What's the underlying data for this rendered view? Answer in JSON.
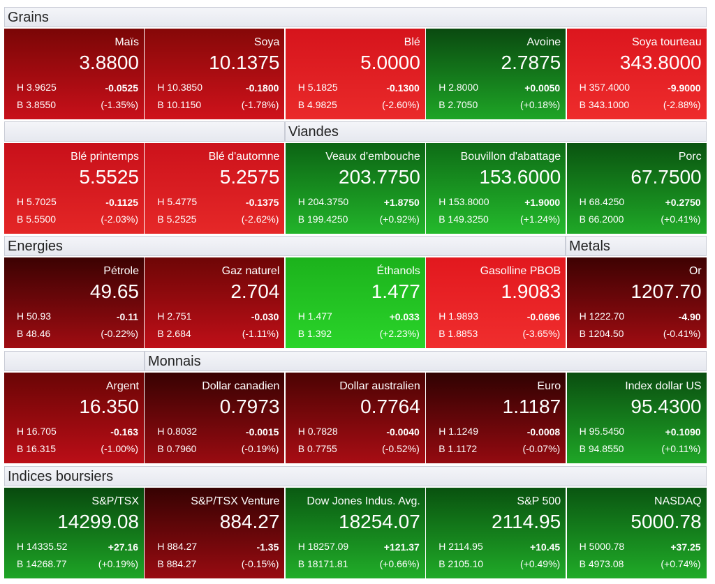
{
  "sections": [
    {
      "headers": [
        "Grains"
      ],
      "tiles": [
        {
          "name": "Maïs",
          "price": "3.8800",
          "high": "H 3.9625",
          "change": "-0.0525",
          "low": "B 3.8550",
          "pct": "(-1.35%)",
          "colors": [
            "#7a0606",
            "#c8101a"
          ]
        },
        {
          "name": "Soya",
          "price": "10.1375",
          "high": "H 10.3850",
          "change": "-0.1800",
          "low": "B 10.1150",
          "pct": "(-1.78%)",
          "colors": [
            "#860808",
            "#cf121b"
          ]
        },
        {
          "name": "Blé",
          "price": "5.0000",
          "high": "H 5.1825",
          "change": "-0.1300",
          "low": "B 4.9825",
          "pct": "(-2.60%)",
          "colors": [
            "#d6141c",
            "#ea2a2a"
          ]
        },
        {
          "name": "Avoine",
          "price": "2.7875",
          "high": "H 2.8000",
          "change": "+0.0050",
          "low": "B 2.7050",
          "pct": "(+0.18%)",
          "colors": [
            "#0a4a10",
            "#1ea526"
          ]
        },
        {
          "name": "Soya tourteau",
          "price": "343.8000",
          "high": "H 357.4000",
          "change": "-9.9000",
          "low": "B 343.1000",
          "pct": "(-2.88%)",
          "colors": [
            "#dc161e",
            "#ee2c2c"
          ]
        }
      ]
    },
    {
      "headers": [
        "Viandes"
      ],
      "tiles": [
        {
          "name": "Blé printemps",
          "price": "5.5525",
          "high": "H 5.7025",
          "change": "-0.1125",
          "low": "B 5.5500",
          "pct": "(-2.03%)",
          "colors": [
            "#c8101a",
            "#e42626"
          ]
        },
        {
          "name": "Blé d'automne",
          "price": "5.2575",
          "high": "H 5.4775",
          "change": "-0.1375",
          "low": "B 5.2525",
          "pct": "(-2.62%)",
          "colors": [
            "#cc121b",
            "#e62828"
          ]
        },
        {
          "name": "Veaux d'embouche",
          "price": "203.7750",
          "high": "H 204.3750",
          "change": "+1.8750",
          "low": "B 199.4250",
          "pct": "(+0.92%)",
          "colors": [
            "#0c6414",
            "#22b42a"
          ]
        },
        {
          "name": "Bouvillon d'abattage",
          "price": "153.6000",
          "high": "H 153.8000",
          "change": "+1.9000",
          "low": "B 149.3250",
          "pct": "(+1.24%)",
          "colors": [
            "#0e6c16",
            "#24ba2c"
          ]
        },
        {
          "name": "Porc",
          "price": "67.7500",
          "high": "H 68.4250",
          "change": "+0.2750",
          "low": "B 66.2000",
          "pct": "(+0.41%)",
          "colors": [
            "#0a5410",
            "#1fa827"
          ]
        }
      ]
    },
    {
      "headers": [
        "Energies",
        "Metals"
      ],
      "tiles": [
        {
          "name": "Pétrole",
          "price": "49.65",
          "high": "H 50.93",
          "change": "-0.11",
          "low": "B 48.46",
          "pct": "(-0.22%)",
          "colors": [
            "#3c0202",
            "#a00c12"
          ]
        },
        {
          "name": "Gaz naturel",
          "price": "2.704",
          "high": "H 2.751",
          "change": "-0.030",
          "low": "B 2.684",
          "pct": "(-1.11%)",
          "colors": [
            "#6e0606",
            "#bf0f18"
          ]
        },
        {
          "name": "Éthanols",
          "price": "1.477",
          "high": "H 1.477",
          "change": "+0.033",
          "low": "B 1.392",
          "pct": "(+2.23%)",
          "colors": [
            "#1cb21c",
            "#2ad42a"
          ]
        },
        {
          "name": "Gasolline PBOB",
          "price": "1.9083",
          "high": "H 1.9893",
          "change": "-0.0696",
          "low": "B 1.8853",
          "pct": "(-3.65%)",
          "colors": [
            "#e2181e",
            "#f02e2e"
          ]
        },
        {
          "name": "Or",
          "price": "1207.70",
          "high": "H 1222.70",
          "change": "-4.90",
          "low": "B 1204.50",
          "pct": "(-0.41%)",
          "colors": [
            "#3e0202",
            "#a00c12"
          ]
        }
      ]
    },
    {
      "headers": [
        "Monnais"
      ],
      "tiles": [
        {
          "name": "Argent",
          "price": "16.350",
          "high": "H 16.705",
          "change": "-0.163",
          "low": "B 16.315",
          "pct": "(-1.00%)",
          "colors": [
            "#6a0505",
            "#bb0e17"
          ]
        },
        {
          "name": "Dollar canadien",
          "price": "0.7973",
          "high": "H 0.8032",
          "change": "-0.0015",
          "low": "B 0.7960",
          "pct": "(-0.19%)",
          "colors": [
            "#380202",
            "#9a0b11"
          ]
        },
        {
          "name": "Dollar australien",
          "price": "0.7764",
          "high": "H 0.7828",
          "change": "-0.0040",
          "low": "B 0.7755",
          "pct": "(-0.52%)",
          "colors": [
            "#4c0303",
            "#a80d14"
          ]
        },
        {
          "name": "Euro",
          "price": "1.1187",
          "high": "H 1.1249",
          "change": "-0.0008",
          "low": "B 1.1172",
          "pct": "(-0.07%)",
          "colors": [
            "#300202",
            "#940a10"
          ]
        },
        {
          "name": "Index dollar US",
          "price": "95.4300",
          "high": "H 95.5450",
          "change": "+0.1090",
          "low": "B 94.8550",
          "pct": "(+0.11%)",
          "colors": [
            "#0a4e10",
            "#1fa627"
          ]
        }
      ]
    },
    {
      "headers": [
        "Indices boursiers"
      ],
      "tiles": [
        {
          "name": "S&P/TSX",
          "price": "14299.08",
          "high": "H 14335.52",
          "change": "+27.16",
          "low": "B 14268.77",
          "pct": "(+0.19%)",
          "colors": [
            "#084a0e",
            "#1ea526"
          ]
        },
        {
          "name": "S&P/TSX Venture",
          "price": "884.27",
          "high": "H 884.27",
          "change": "-1.35",
          "low": "B 884.27",
          "pct": "(-0.15%)",
          "colors": [
            "#360202",
            "#980b11"
          ]
        },
        {
          "name": "Dow Jones Indus. Avg.",
          "price": "18254.07",
          "high": "H 18257.09",
          "change": "+121.37",
          "low": "B 18171.81",
          "pct": "(+0.66%)",
          "colors": [
            "#0a5a12",
            "#21ad29"
          ]
        },
        {
          "name": "S&P 500",
          "price": "2114.95",
          "high": "H 2114.95",
          "change": "+10.45",
          "low": "B 2105.10",
          "pct": "(+0.49%)",
          "colors": [
            "#09520f",
            "#20aa28"
          ]
        },
        {
          "name": "NASDAQ",
          "price": "5000.78",
          "high": "H 5000.78",
          "change": "+37.25",
          "low": "B 4973.08",
          "pct": "(+0.74%)",
          "colors": [
            "#0a5611",
            "#20ab28"
          ]
        }
      ]
    }
  ]
}
